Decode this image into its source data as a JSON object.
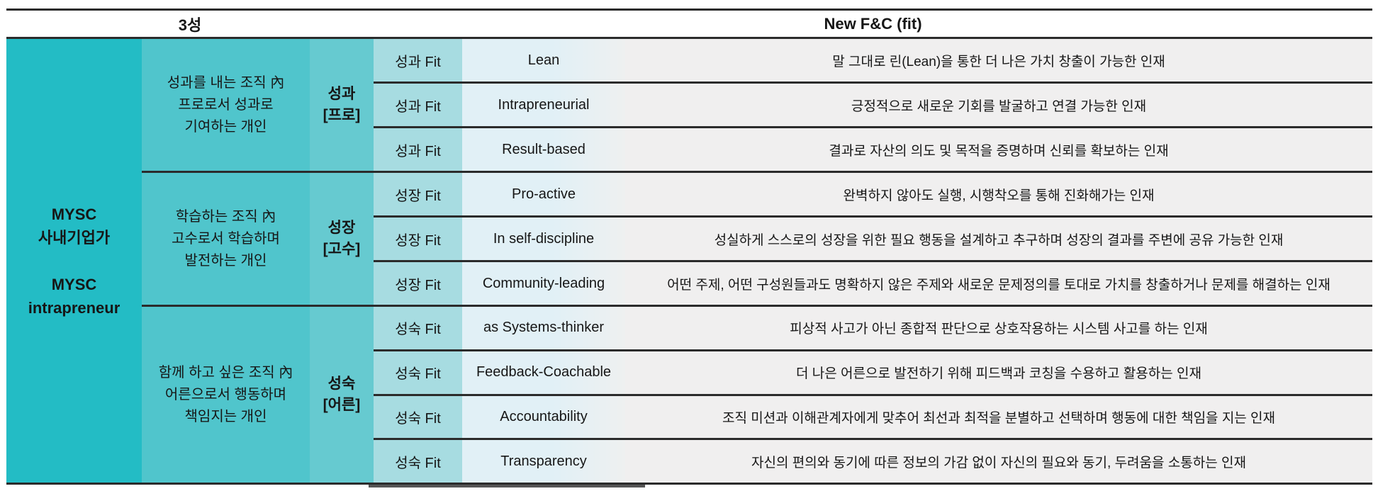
{
  "header": {
    "left": "3성",
    "right": "New F&C (fit)"
  },
  "org": {
    "name": "MYSC\n사내기업가\n\nMYSC\nintrapreneur"
  },
  "colors": {
    "col1": "#23bcc5",
    "col2": "#50c5cc",
    "col3": "#66cad0",
    "col4": "#a7dce1",
    "col5": "#e1f0f6",
    "col6": "#f0efef",
    "line": "#2b2b2b"
  },
  "groups": [
    {
      "description": "성과를 내는 조직 內\n프로로서 성과로\n기여하는 개인",
      "stage": "성과\n[프로]",
      "rows": [
        {
          "fit": "성과 Fit",
          "name": "Lean",
          "desc": "말 그대로 린(Lean)을 통한 더 나은 가치 창출이 가능한 인재"
        },
        {
          "fit": "성과 Fit",
          "name": "Intrapreneurial",
          "desc": "긍정적으로 새로운 기회를 발굴하고 연결 가능한 인재"
        },
        {
          "fit": "성과 Fit",
          "name": "Result-based",
          "desc": "결과로 자산의 의도 및 목적을 증명하며 신뢰를 확보하는 인재"
        }
      ]
    },
    {
      "description": "학습하는 조직 內\n고수로서 학습하며\n발전하는 개인",
      "stage": "성장\n[고수]",
      "rows": [
        {
          "fit": "성장 Fit",
          "name": "Pro-active",
          "desc": "완벽하지 않아도 실행, 시행착오를 통해 진화해가는 인재"
        },
        {
          "fit": "성장 Fit",
          "name": "In self-discipline",
          "desc": "성실하게 스스로의 성장을 위한 필요 행동을 설계하고 추구하며 성장의 결과를 주변에 공유 가능한 인재"
        },
        {
          "fit": "성장 Fit",
          "name": "Community-leading",
          "desc": "어떤 주제, 어떤 구성원들과도 명확하지 않은 주제와 새로운 문제정의를 토대로 가치를 창출하거나 문제를 해결하는 인재"
        }
      ]
    },
    {
      "description": "함께 하고 싶은 조직 內\n어른으로서 행동하며\n책임지는 개인",
      "stage": "성숙\n[어른]",
      "rows": [
        {
          "fit": "성숙 Fit",
          "name": "as Systems-thinker",
          "desc": "피상적 사고가 아닌 종합적 판단으로 상호작용하는 시스템 사고를 하는 인재"
        },
        {
          "fit": "성숙 Fit",
          "name": "Feedback-Coachable",
          "desc": "더 나은 어른으로 발전하기 위해 피드백과 코칭을 수용하고 활용하는 인재"
        },
        {
          "fit": "성숙 Fit",
          "name": "Accountability",
          "desc": "조직 미션과 이해관계자에게 맞추어 최선과 최적을 분별하고 선택하며 행동에 대한 책임을 지는 인재"
        },
        {
          "fit": "성숙 Fit",
          "name": "Transparency",
          "desc": "자신의 편의와 동기에 따른 정보의 가감 없이 자신의 필요와 동기, 두려움을 소통하는 인재"
        }
      ]
    }
  ]
}
